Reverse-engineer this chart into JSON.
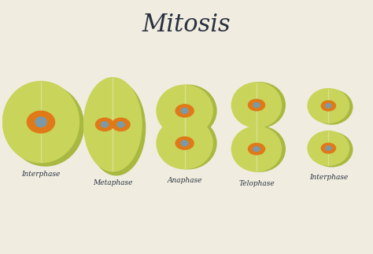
{
  "background_color": "#f0ede0",
  "title": "Mitosis",
  "title_fontsize": 22,
  "title_color": "#2a3040",
  "cell_color_light": "#c8d45a",
  "cell_color_dark": "#a8b840",
  "nucleus_color": "#e07a18",
  "nucleolus_color": "#7a9aaa",
  "divider_color": "#d8e090",
  "label_color": "#2a3040",
  "label_fontsize": 6.5,
  "labels": [
    "Interphase",
    "Metaphase",
    "Anaphase",
    "Telophase",
    "Interphase"
  ]
}
